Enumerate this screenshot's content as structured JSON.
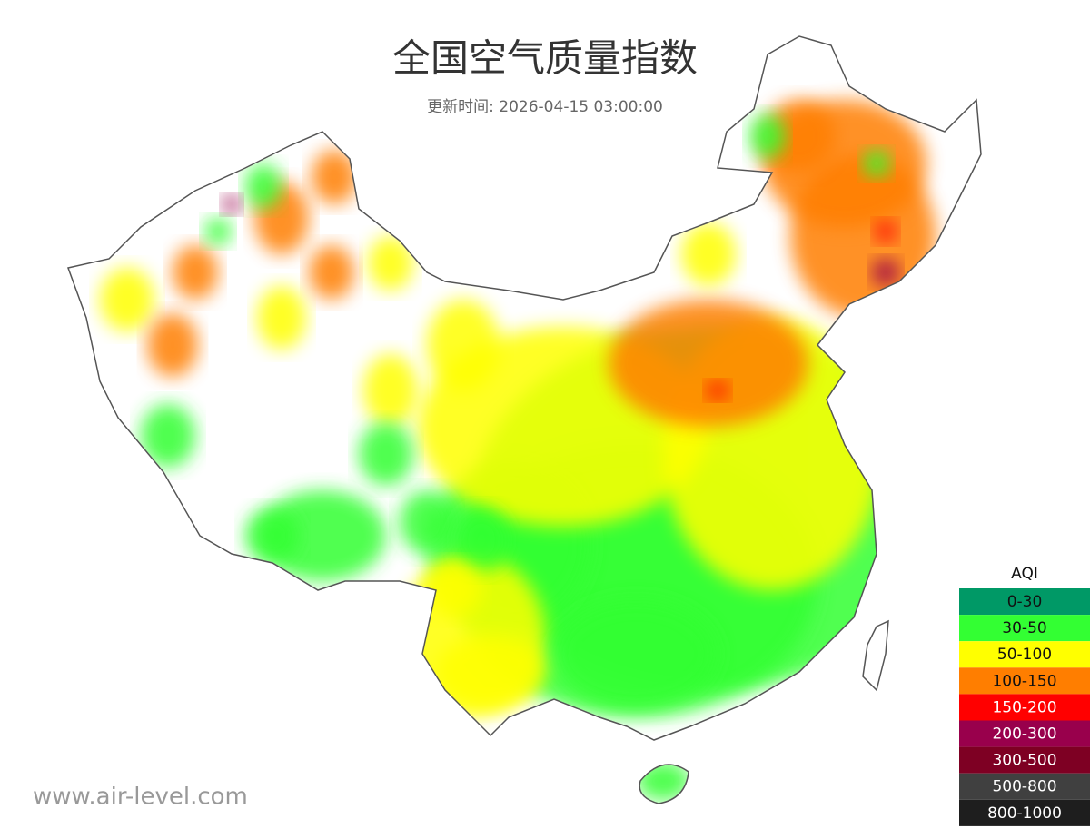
{
  "header": {
    "title": "全国空气质量指数",
    "subtitle": "更新时间: 2026-04-15 03:00:00"
  },
  "legend": {
    "title": "AQI",
    "items": [
      {
        "label": "0-30",
        "color": "#009966",
        "text_color": "#111111"
      },
      {
        "label": "30-50",
        "color": "#33ff33",
        "text_color": "#111111"
      },
      {
        "label": "50-100",
        "color": "#ffff00",
        "text_color": "#111111"
      },
      {
        "label": "100-150",
        "color": "#ff7e00",
        "text_color": "#111111"
      },
      {
        "label": "150-200",
        "color": "#ff0000",
        "text_color": "#ffffff"
      },
      {
        "label": "200-300",
        "color": "#99004c",
        "text_color": "#ffffff"
      },
      {
        "label": "300-500",
        "color": "#7e0023",
        "text_color": "#ffffff"
      },
      {
        "label": "500-800",
        "color": "#404040",
        "text_color": "#ffffff"
      },
      {
        "label": "800-1000",
        "color": "#1e1e1e",
        "text_color": "#ffffff"
      }
    ]
  },
  "watermark": "www.air-level.com"
}
